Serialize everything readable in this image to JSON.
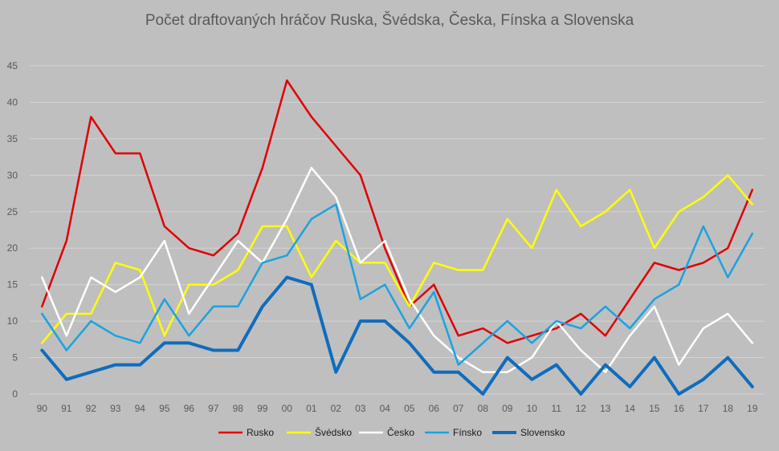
{
  "chart_data": {
    "type": "line",
    "title": "Počet draftovaných hráčov Ruska, Švédska, Česka, Fínska a Slovenska",
    "xlabel": "",
    "ylabel": "",
    "categories": [
      "90",
      "91",
      "92",
      "93",
      "94",
      "95",
      "96",
      "97",
      "98",
      "99",
      "00",
      "01",
      "02",
      "03",
      "04",
      "05",
      "06",
      "07",
      "08",
      "09",
      "10",
      "11",
      "12",
      "13",
      "14",
      "15",
      "16",
      "17",
      "18",
      "19"
    ],
    "ylim": [
      0,
      45
    ],
    "yticks": [
      "0",
      "5",
      "10",
      "15",
      "20",
      "25",
      "30",
      "35",
      "40",
      "45"
    ],
    "grid": true,
    "legend_position": "bottom",
    "series": [
      {
        "name": "Rusko",
        "color": "#e00000",
        "values": [
          12,
          21,
          38,
          33,
          33,
          23,
          20,
          19,
          22,
          31,
          43,
          38,
          34,
          30,
          20,
          12,
          15,
          8,
          9,
          7,
          8,
          9,
          11,
          8,
          13,
          18,
          17,
          18,
          20,
          28
        ]
      },
      {
        "name": "Švédsko",
        "color": "#ffff00",
        "values": [
          7,
          11,
          11,
          18,
          17,
          8,
          15,
          15,
          17,
          23,
          23,
          16,
          21,
          18,
          18,
          12,
          18,
          17,
          17,
          24,
          20,
          28,
          23,
          25,
          28,
          20,
          25,
          27,
          30,
          26
        ]
      },
      {
        "name": "Česko",
        "color": "#ffffff",
        "values": [
          16,
          8,
          16,
          14,
          16,
          21,
          11,
          16,
          21,
          18,
          24,
          31,
          27,
          18,
          21,
          13,
          8,
          5,
          3,
          3,
          5,
          10,
          6,
          3,
          8,
          12,
          4,
          9,
          11,
          7
        ]
      },
      {
        "name": "Fínsko",
        "color": "#1aa3e0",
        "values": [
          11,
          6,
          10,
          8,
          7,
          13,
          8,
          12,
          12,
          18,
          19,
          24,
          26,
          13,
          15,
          9,
          14,
          4,
          7,
          10,
          7,
          10,
          9,
          12,
          9,
          13,
          15,
          23,
          16,
          22
        ]
      },
      {
        "name": "Slovensko",
        "color": "#0f6cbd",
        "values": [
          6,
          2,
          3,
          4,
          4,
          7,
          7,
          6,
          6,
          12,
          16,
          15,
          3,
          10,
          10,
          7,
          3,
          3,
          0,
          5,
          2,
          4,
          0,
          4,
          1,
          5,
          0,
          2,
          5,
          1
        ]
      }
    ]
  }
}
